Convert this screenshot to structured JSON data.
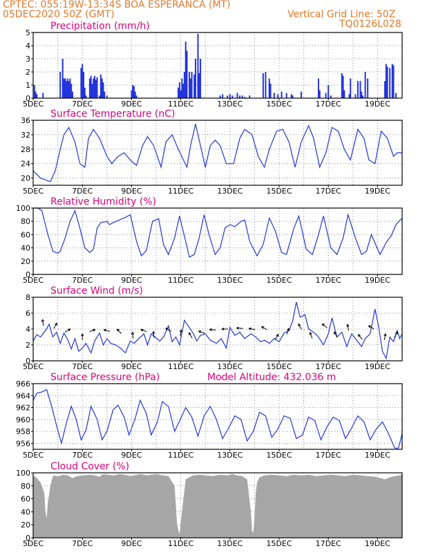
{
  "header": {
    "left_line1": "CPTEC:    055:19W-13:34S   BOA ESPERANCA (MT)",
    "left_line2": "05DEC2020 50Z (GMT)",
    "right_line1": "Vertical Grid Line: 50Z",
    "right_line2": "TQ0126L028"
  },
  "colors": {
    "header": "#e8782a",
    "title": "#e0007a",
    "series": "#2233dd",
    "cloud": "#a6a6a6",
    "grid": "#888888"
  },
  "x_ticks": [
    "5DEC",
    "7DEC",
    "9DEC",
    "11DEC",
    "13DEC",
    "15DEC",
    "17DEC",
    "19DEC"
  ],
  "chart_data": [
    {
      "type": "bar",
      "title": "Precipitation (mm/h)",
      "ylim": [
        0,
        5
      ],
      "yticks": [
        "0",
        "1",
        "2",
        "3",
        "4",
        "5"
      ],
      "xlim_days": [
        5,
        20
      ],
      "bar_width_days": 0.04,
      "x_day": [
        5.05,
        5.1,
        5.15,
        5.4,
        6.1,
        6.2,
        6.25,
        6.3,
        6.35,
        6.4,
        6.45,
        6.5,
        6.55,
        6.6,
        6.95,
        7.0,
        7.05,
        7.1,
        7.15,
        7.3,
        7.35,
        7.4,
        7.45,
        7.5,
        7.55,
        7.6,
        7.7,
        7.75,
        7.8,
        7.85,
        7.9,
        8.0,
        9.0,
        9.05,
        9.1,
        9.15,
        9.2,
        10.9,
        10.95,
        11.0,
        11.05,
        11.1,
        11.15,
        11.2,
        11.25,
        11.35,
        11.4,
        11.45,
        11.55,
        11.6,
        11.7,
        11.75,
        11.8,
        12.6,
        12.7,
        12.9,
        13.0,
        13.1,
        13.3,
        13.4,
        13.5,
        13.6,
        13.8,
        14.35,
        14.45,
        14.6,
        14.65,
        14.8,
        14.95,
        15.1,
        15.3,
        15.5,
        15.55,
        15.9,
        16.6,
        16.65,
        16.9,
        17.0,
        17.1,
        17.55,
        17.6,
        17.65,
        17.85,
        17.9,
        18.1,
        18.2,
        18.3,
        18.35,
        18.4,
        18.5,
        18.6,
        19.3,
        19.35,
        19.4,
        19.5,
        19.6,
        19.65,
        19.75
      ],
      "values": [
        1.0,
        0.5,
        0.3,
        0.4,
        2.0,
        3.0,
        1.5,
        1.5,
        1.3,
        1.5,
        1.3,
        1.5,
        1.1,
        0.5,
        2.3,
        2.6,
        2.0,
        0.8,
        0.2,
        1.5,
        1.7,
        1.1,
        1.5,
        1.7,
        1.4,
        1.6,
        0.2,
        1.8,
        1.5,
        1.2,
        0.5,
        0.2,
        0.6,
        1.0,
        0.9,
        0.5,
        0.2,
        0.8,
        1.2,
        0.6,
        1.5,
        1.1,
        2.0,
        4.3,
        3.6,
        2.0,
        1.5,
        2.0,
        1.8,
        3.0,
        4.9,
        1.9,
        3.0,
        0.2,
        0.3,
        0.2,
        0.3,
        0.2,
        0.4,
        0.2,
        0.2,
        0.1,
        0.2,
        1.9,
        2.0,
        1.5,
        1.1,
        0.4,
        0.3,
        0.5,
        0.4,
        0.3,
        0.2,
        0.5,
        1.5,
        0.6,
        0.4,
        1.0,
        0.2,
        1.9,
        1.7,
        0.6,
        0.3,
        1.5,
        0.3,
        1.3,
        1.3,
        0.5,
        0.2,
        2.0,
        1.5,
        1.3,
        2.6,
        2.4,
        2.3,
        2.6,
        2.5,
        0.4
      ]
    },
    {
      "type": "line",
      "title": "Surface Temperature (nC)",
      "ylim": [
        18,
        36
      ],
      "yticks": [
        "20",
        "24",
        "28",
        "32",
        "36"
      ],
      "xlim_days": [
        5,
        20
      ],
      "x_day": [
        5,
        5.15,
        5.3,
        5.5,
        5.7,
        5.9,
        6.1,
        6.25,
        6.45,
        6.7,
        6.9,
        7.1,
        7.25,
        7.45,
        7.7,
        8.0,
        8.2,
        8.45,
        8.7,
        8.95,
        9.2,
        9.45,
        9.65,
        9.9,
        10.2,
        10.4,
        10.65,
        10.9,
        11.25,
        11.4,
        11.6,
        11.8,
        12.0,
        12.2,
        12.4,
        12.6,
        12.85,
        13.15,
        13.4,
        13.6,
        13.9,
        14.15,
        14.4,
        14.6,
        14.9,
        15.15,
        15.4,
        15.65,
        15.9,
        16.2,
        16.4,
        16.65,
        16.9,
        17.15,
        17.4,
        17.65,
        17.9,
        18.2,
        18.45,
        18.65,
        18.9,
        19.15,
        19.4,
        19.65,
        19.8,
        20.0
      ],
      "values": [
        22,
        21,
        20,
        19.5,
        19,
        22,
        28,
        32,
        34,
        30,
        24,
        23,
        31,
        33.5,
        31,
        26,
        24,
        26,
        27,
        25,
        23.5,
        29,
        31.5,
        29,
        23,
        30,
        32,
        28,
        23,
        29,
        35,
        29,
        23,
        29,
        30.5,
        29,
        24,
        24,
        31,
        33.5,
        32,
        26,
        23,
        28,
        33,
        33.5,
        30,
        23,
        30,
        34.5,
        31,
        23,
        27,
        34,
        33,
        28,
        25,
        33.5,
        31,
        25,
        24,
        33,
        31,
        26,
        27,
        27
      ]
    },
    {
      "type": "line",
      "title": "Relative Humidity (%)",
      "ylim": [
        0,
        100
      ],
      "yticks": [
        "0",
        "20",
        "40",
        "60",
        "80",
        "100"
      ],
      "xlim_days": [
        5,
        20
      ],
      "x_day": [
        5,
        5.1,
        5.2,
        5.35,
        5.6,
        5.8,
        6.0,
        6.1,
        6.3,
        6.5,
        6.7,
        6.9,
        7.1,
        7.3,
        7.45,
        7.6,
        7.75,
        8.0,
        8.1,
        8.25,
        8.5,
        8.75,
        8.95,
        9.2,
        9.4,
        9.6,
        9.85,
        10.1,
        10.3,
        10.5,
        10.75,
        10.95,
        11.2,
        11.35,
        11.55,
        11.75,
        11.95,
        12.15,
        12.4,
        12.6,
        12.8,
        13.0,
        13.2,
        13.45,
        13.6,
        13.8,
        14.1,
        14.35,
        14.6,
        14.85,
        15.1,
        15.3,
        15.6,
        15.8,
        16.1,
        16.35,
        16.6,
        16.8,
        17.1,
        17.35,
        17.6,
        17.8,
        18.1,
        18.35,
        18.55,
        18.75,
        19.1,
        19.35,
        19.55,
        19.75,
        20.0
      ],
      "values": [
        100,
        100,
        100,
        96,
        60,
        35,
        32,
        35,
        55,
        80,
        96,
        70,
        40,
        33,
        38,
        70,
        78,
        80,
        75,
        78,
        82,
        86,
        90,
        50,
        28,
        36,
        80,
        84,
        45,
        30,
        55,
        88,
        50,
        26,
        30,
        55,
        90,
        60,
        30,
        40,
        70,
        75,
        72,
        80,
        82,
        50,
        28,
        45,
        85,
        65,
        33,
        30,
        70,
        88,
        38,
        30,
        60,
        88,
        40,
        30,
        55,
        90,
        55,
        30,
        35,
        60,
        30,
        48,
        58,
        75,
        85
      ]
    },
    {
      "type": "line",
      "title": "Surface Wind (m/s)",
      "ylim": [
        0,
        8
      ],
      "yticks": [
        "0",
        "2",
        "4",
        "6",
        "8"
      ],
      "xlim_days": [
        5,
        20
      ],
      "x_day": [
        5,
        5.15,
        5.3,
        5.5,
        5.65,
        5.8,
        5.95,
        6.1,
        6.25,
        6.4,
        6.55,
        6.7,
        6.85,
        7.0,
        7.15,
        7.35,
        7.5,
        7.7,
        7.85,
        8.0,
        8.15,
        8.35,
        8.55,
        8.75,
        8.95,
        9.1,
        9.3,
        9.5,
        9.65,
        9.8,
        9.95,
        10.15,
        10.3,
        10.5,
        10.65,
        10.8,
        10.95,
        11.15,
        11.3,
        11.5,
        11.65,
        11.8,
        12.0,
        12.2,
        12.45,
        12.65,
        12.85,
        13.0,
        13.2,
        13.4,
        13.6,
        13.85,
        14.05,
        14.25,
        14.4,
        14.6,
        14.8,
        15.0,
        15.2,
        15.4,
        15.55,
        15.7,
        15.85,
        16.05,
        16.2,
        16.4,
        16.6,
        16.8,
        17.0,
        17.15,
        17.35,
        17.55,
        17.75,
        17.95,
        18.15,
        18.35,
        18.5,
        18.7,
        18.9,
        19.05,
        19.2,
        19.35,
        19.5,
        19.65,
        19.8,
        19.9,
        20.0
      ],
      "values": [
        2.5,
        3.3,
        3.0,
        3.8,
        4.6,
        3.0,
        3.6,
        2.2,
        3.5,
        2.7,
        1.5,
        2.8,
        1.2,
        1.6,
        2.2,
        1.0,
        2.5,
        3.5,
        2.0,
        2.8,
        2.2,
        2.0,
        1.6,
        1.0,
        2.5,
        2.2,
        2.8,
        3.4,
        2.0,
        3.4,
        3.0,
        2.5,
        3.0,
        4.4,
        2.4,
        3.0,
        2.0,
        5.1,
        4.4,
        3.5,
        2.5,
        3.2,
        3.4,
        2.6,
        2.2,
        2.8,
        1.6,
        4.2,
        3.2,
        3.6,
        2.8,
        3.4,
        3.0,
        2.4,
        2.6,
        2.2,
        2.8,
        2.4,
        3.5,
        3.8,
        5.0,
        7.4,
        5.5,
        5.8,
        4.0,
        3.6,
        3.0,
        2.0,
        3.4,
        5.4,
        3.0,
        3.6,
        1.8,
        3.4,
        2.6,
        1.8,
        2.8,
        3.4,
        6.5,
        4.2,
        1.2,
        0.3,
        3.0,
        2.4,
        3.8,
        2.8,
        3.4
      ],
      "arrows_x_day": [
        5.4,
        5.9,
        6.4,
        7.0,
        7.4,
        8.0,
        8.5,
        9.05,
        9.5,
        9.9,
        10.5,
        11.0,
        11.4,
        11.85,
        12.3,
        12.8,
        13.4,
        13.9,
        14.4,
        14.9,
        15.35,
        15.85,
        16.3,
        16.85,
        17.3,
        17.8,
        18.3,
        18.75,
        19.3,
        19.75
      ],
      "arrows_y": [
        4.8,
        4.4,
        3.8,
        3.0,
        3.8,
        3.8,
        3.7,
        3.2,
        3.8,
        3.3,
        3.9,
        3.5,
        3.2,
        3.6,
        3.9,
        4.0,
        4.1,
        4.0,
        4.1,
        3.0,
        3.7,
        4.3,
        3.2,
        4.4,
        3.3,
        4.2,
        3.0,
        4.2,
        3.0,
        3.3
      ],
      "arrows_dir_deg": [
        100,
        60,
        30,
        90,
        20,
        165,
        135,
        95,
        160,
        95,
        150,
        80,
        120,
        160,
        175,
        180,
        175,
        170,
        150,
        60,
        70,
        120,
        110,
        140,
        120,
        100,
        130,
        150,
        80,
        60
      ]
    },
    {
      "type": "line",
      "title": "Surface Pressure (hPa)",
      "ylim": [
        955,
        966
      ],
      "yticks": [
        "956",
        "958",
        "960",
        "962",
        "964",
        "966"
      ],
      "xlim_days": [
        5,
        20
      ],
      "x_day": [
        5,
        5.15,
        5.35,
        5.55,
        5.75,
        5.95,
        6.15,
        6.35,
        6.55,
        6.75,
        6.95,
        7.15,
        7.35,
        7.6,
        7.8,
        8.0,
        8.25,
        8.45,
        8.7,
        8.9,
        9.15,
        9.35,
        9.6,
        9.8,
        10.05,
        10.25,
        10.5,
        10.75,
        11.0,
        11.2,
        11.45,
        11.7,
        11.95,
        12.2,
        12.45,
        12.7,
        12.95,
        13.2,
        13.45,
        13.7,
        13.95,
        14.2,
        14.45,
        14.7,
        14.95,
        15.2,
        15.45,
        15.7,
        15.95,
        16.2,
        16.45,
        16.7,
        16.95,
        17.2,
        17.45,
        17.7,
        17.95,
        18.2,
        18.45,
        18.7,
        18.95,
        19.2,
        19.45,
        19.7,
        19.85,
        20.0
      ],
      "values": [
        963.2,
        964.4,
        964.6,
        965.0,
        962.2,
        959.0,
        956.0,
        959.4,
        962.2,
        960.0,
        956.6,
        958.2,
        962.2,
        960.0,
        956.6,
        958.0,
        961.6,
        962.4,
        960.4,
        957.4,
        960.2,
        963.2,
        961.0,
        957.4,
        959.6,
        963.0,
        962.2,
        958.0,
        960.2,
        962.0,
        960.4,
        957.2,
        960.6,
        962.2,
        960.0,
        956.8,
        958.6,
        960.6,
        960.0,
        956.4,
        958.0,
        961.2,
        960.6,
        957.0,
        958.4,
        960.6,
        960.2,
        956.8,
        957.4,
        960.4,
        959.8,
        956.6,
        958.8,
        960.4,
        959.8,
        956.8,
        958.6,
        960.6,
        959.6,
        956.6,
        958.4,
        959.6,
        957.6,
        955.2,
        955.2,
        957.6
      ]
    },
    {
      "type": "area",
      "title": "Cloud Cover (%)",
      "ylim": [
        0,
        100
      ],
      "yticks": [
        "0",
        "20",
        "40",
        "60",
        "80",
        "100"
      ],
      "xlim_days": [
        5,
        20
      ],
      "x_day": [
        5,
        5.15,
        5.3,
        5.45,
        5.5,
        5.55,
        5.6,
        5.7,
        5.8,
        5.9,
        6.0,
        6.2,
        6.4,
        6.6,
        6.8,
        7.0,
        7.3,
        7.5,
        7.7,
        7.8,
        7.9,
        8.0,
        8.3,
        8.5,
        8.7,
        9.0,
        9.2,
        9.4,
        9.6,
        9.8,
        10.0,
        10.3,
        10.5,
        10.75,
        10.85,
        10.95,
        11.05,
        11.2,
        11.5,
        11.8,
        12.0,
        12.3,
        12.6,
        12.9,
        13.1,
        13.3,
        13.5,
        13.7,
        13.85,
        13.9,
        13.95,
        14.0,
        14.05,
        14.1,
        14.2,
        14.4,
        14.7,
        15.0,
        15.3,
        15.6,
        15.9,
        16.2,
        16.5,
        16.8,
        17.1,
        17.4,
        17.7,
        18.0,
        18.3,
        18.6,
        18.9,
        19.1,
        19.3,
        19.5,
        19.7,
        19.9,
        20.0
      ],
      "values": [
        96,
        92,
        85,
        70,
        40,
        30,
        55,
        80,
        95,
        96,
        94,
        97,
        96,
        92,
        95,
        96,
        97,
        96,
        94,
        97,
        98,
        97,
        96,
        98,
        97,
        95,
        97,
        98,
        96,
        97,
        98,
        96,
        95,
        80,
        20,
        5,
        40,
        90,
        96,
        97,
        96,
        95,
        97,
        96,
        98,
        96,
        95,
        90,
        40,
        10,
        8,
        30,
        70,
        85,
        93,
        96,
        97,
        96,
        95,
        97,
        96,
        97,
        95,
        96,
        97,
        96,
        95,
        97,
        96,
        95,
        94,
        92,
        90,
        93,
        95,
        96,
        97
      ]
    }
  ],
  "panels": [
    {
      "title": "Precipitation (mm/h)"
    },
    {
      "title": "Surface Temperature (nC)"
    },
    {
      "title": "Relative Humidity (%)"
    },
    {
      "title": "Surface Wind (m/s)"
    },
    {
      "title": "Surface Pressure (hPa)",
      "extra_title": "Model Altitude: 432.036  m"
    },
    {
      "title": "Cloud Cover (%)"
    }
  ]
}
